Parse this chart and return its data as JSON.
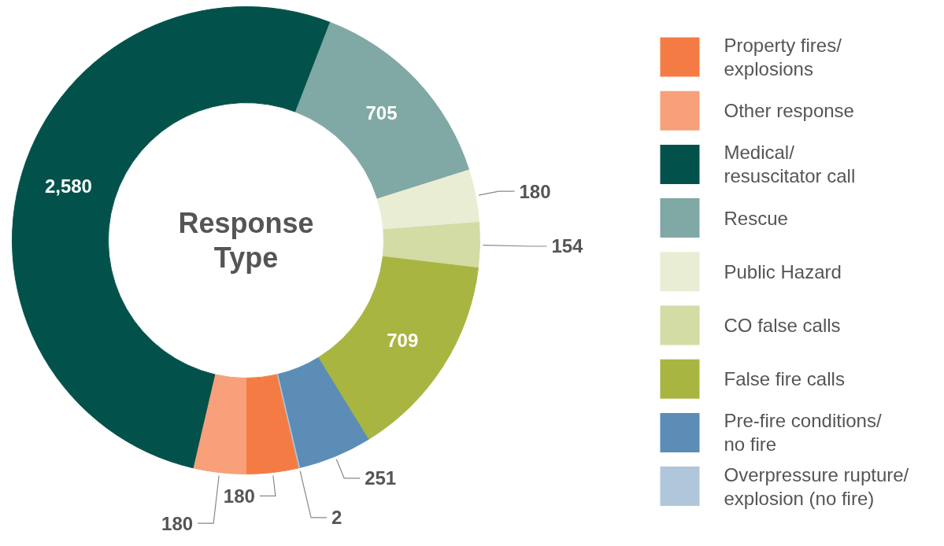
{
  "chart_data": {
    "type": "donut",
    "title": "Response Type",
    "categories": [
      "Property fires/ explosions",
      "Other response",
      "Medical/ resuscitator call",
      "Rescue",
      "Public Hazard",
      "CO false calls",
      "False fire calls",
      "Pre-fire conditions/ no fire",
      "Overpressure rupture/ explosion (no fire)"
    ],
    "values": [
      180,
      180,
      2580,
      705,
      180,
      154,
      709,
      251,
      2
    ],
    "colors": [
      "#f47c44",
      "#f7a07a",
      "#02524b",
      "#80a8a4",
      "#e8edd4",
      "#d3dca4",
      "#a8b540",
      "#5b8db6",
      "#afc6db"
    ],
    "value_labels": [
      "180",
      "180",
      "2,580",
      "705",
      "180",
      "154",
      "709",
      "251",
      "2"
    ],
    "legend": "right"
  }
}
